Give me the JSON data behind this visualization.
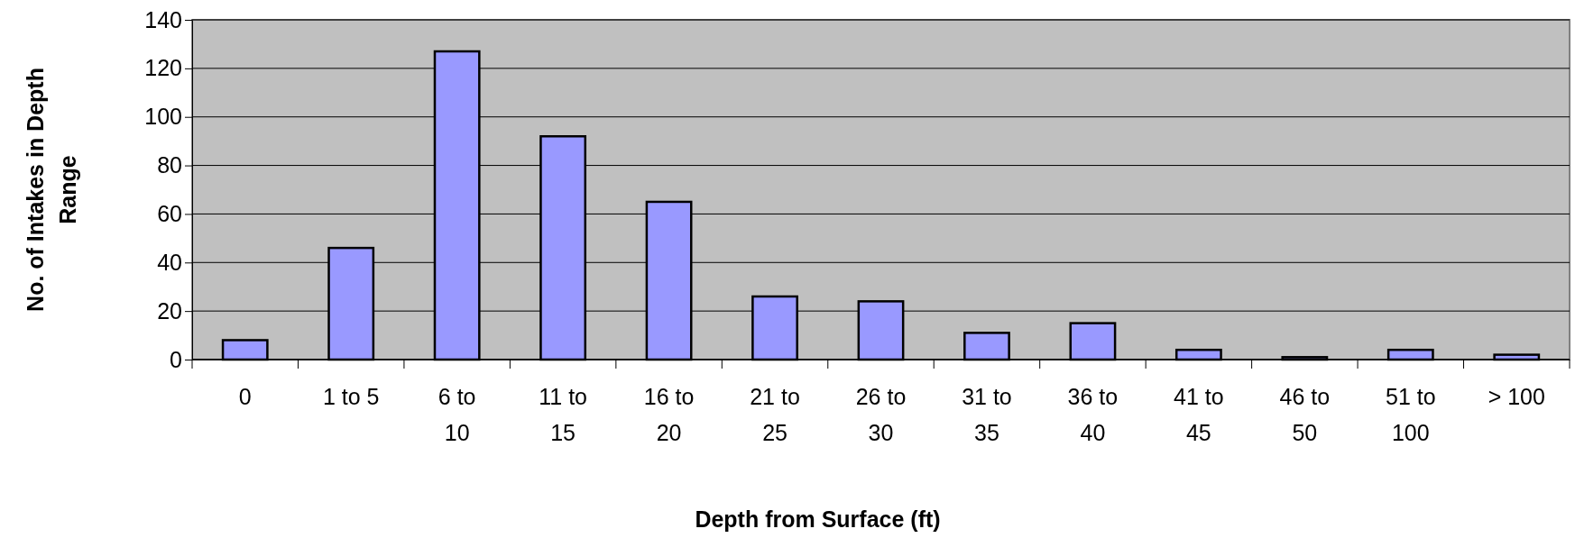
{
  "chart_data": {
    "type": "bar",
    "xlabel": "Depth from Surface (ft)",
    "ylabel": "No. of Intakes in Depth Range",
    "categories": [
      "0",
      "1 to 5",
      "6 to 10",
      "11 to 15",
      "16 to 20",
      "21 to 25",
      "26 to 30",
      "31 to 35",
      "36 to 40",
      "41 to 45",
      "46 to 50",
      "51 to 100",
      "> 100"
    ],
    "values": [
      8,
      46,
      127,
      92,
      65,
      26,
      24,
      11,
      15,
      4,
      1,
      4,
      2
    ],
    "color": "#9999ff",
    "ylim": [
      0,
      140
    ],
    "yticks": [
      0,
      20,
      40,
      60,
      80,
      100,
      120,
      140
    ],
    "grid": "y"
  }
}
